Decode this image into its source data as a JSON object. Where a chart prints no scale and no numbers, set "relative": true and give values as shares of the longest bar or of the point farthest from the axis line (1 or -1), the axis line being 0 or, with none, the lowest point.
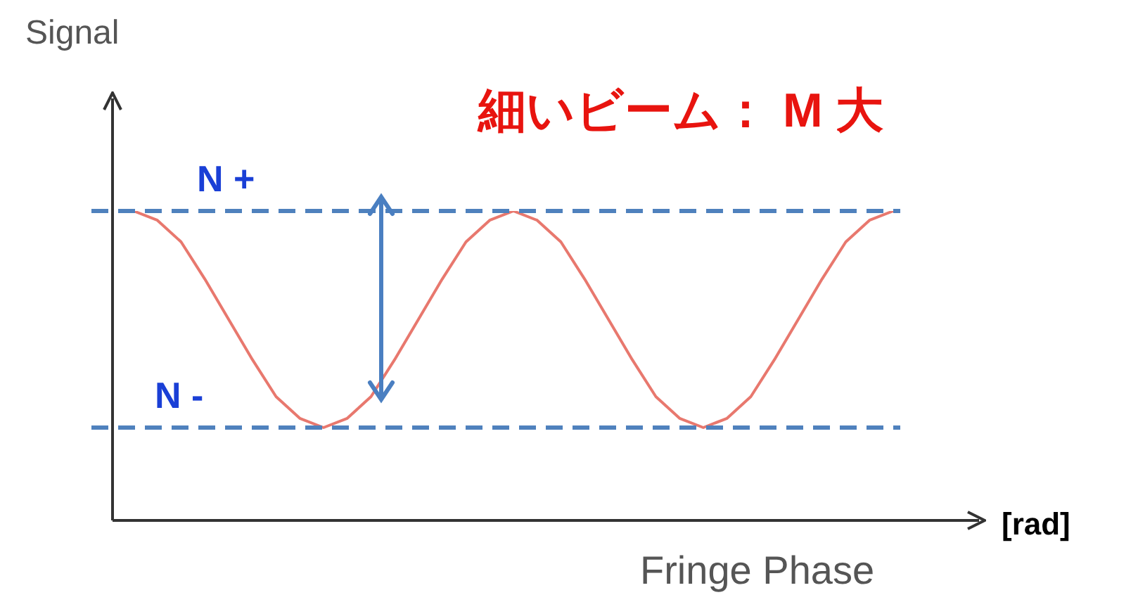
{
  "chart_data": {
    "type": "line",
    "title": "細いビーム： M 大",
    "xlabel": "Fringe Phase",
    "ylabel": "Signal",
    "annotations": [
      "[rad]"
    ],
    "relative": true,
    "categories": [
      null,
      null,
      null,
      null,
      null,
      null,
      null,
      null,
      null,
      null,
      null,
      null,
      null,
      null,
      null,
      null,
      null,
      null,
      null,
      null,
      null,
      null,
      null,
      null,
      null,
      null,
      null,
      null,
      null,
      null,
      null,
      null,
      null
    ],
    "series": [
      {
        "color": "#e8786e",
        "values": [
          1,
          0.97,
          0.9,
          0.78,
          0.65,
          0.52,
          0.4,
          0.33,
          0.3,
          0.33,
          0.4,
          0.52,
          0.65,
          0.78,
          0.9,
          0.97,
          1,
          0.97,
          0.9,
          0.78,
          0.65,
          0.52,
          0.4,
          0.33,
          0.3,
          0.33,
          0.4,
          0.52,
          0.65,
          0.78,
          0.9,
          0.97,
          1
        ]
      }
    ],
    "ref_lines": [
      {
        "axis": "y",
        "value": 1,
        "label": "N +",
        "color": "#4f81bd",
        "line_style": "dashed"
      },
      {
        "axis": "y",
        "value": 0.3,
        "label": "N -",
        "color": "#4f81bd",
        "line_style": "dashed"
      }
    ],
    "legend": false,
    "marker": "none",
    "line_style": "solid"
  }
}
